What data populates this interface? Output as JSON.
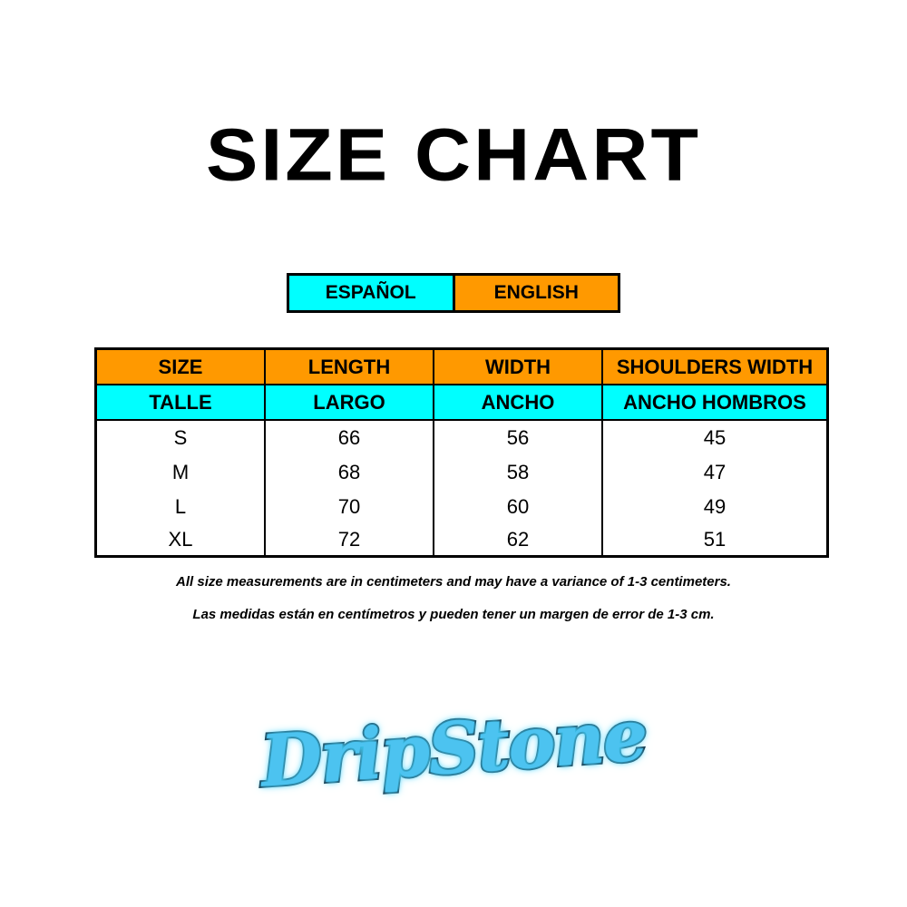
{
  "title": "SIZE CHART",
  "language_legend": {
    "spanish": "ESPAÑOL",
    "english": "ENGLISH",
    "spanish_color": "#00ffff",
    "english_color": "#ff9900"
  },
  "table": {
    "headers_en": [
      "SIZE",
      "LENGTH",
      "WIDTH",
      "SHOULDERS WIDTH"
    ],
    "headers_es": [
      "TALLE",
      "LARGO",
      "ANCHO",
      "ANCHO HOMBROS"
    ],
    "rows": [
      [
        "S",
        "66",
        "56",
        "45"
      ],
      [
        "M",
        "68",
        "58",
        "47"
      ],
      [
        "L",
        "70",
        "60",
        "49"
      ],
      [
        "XL",
        "72",
        "62",
        "51"
      ]
    ]
  },
  "notes": {
    "english": "All size measurements are in centimeters and may have a variance of 1-3 centimeters.",
    "spanish": "Las medidas están en centímetros y pueden tener un margen de error de 1-3 cm."
  },
  "logo": {
    "text": "DripStone"
  }
}
